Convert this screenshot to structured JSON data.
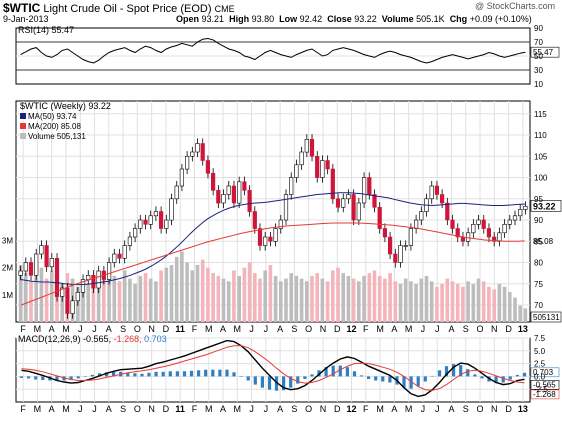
{
  "header": {
    "symbol": "$WTIC",
    "name": "Light Crude Oil - Spot Price (EOD)",
    "exchange": "CME",
    "date": "9-Jan-2013",
    "open_label": "Open",
    "open": "93.21",
    "high_label": "High",
    "high": "93.80",
    "low_label": "Low",
    "low": "92.42",
    "close_label": "Close",
    "close": "93.22",
    "volume_label": "Volume",
    "volume": "505.1K",
    "chg_label": "Chg",
    "chg": "+0.09 (+0.10%)",
    "watermark": "@ StockCharts.com"
  },
  "chart_data": [
    {
      "type": "line",
      "panel": "rsi",
      "title": "RSI(14) 55.47",
      "ylim": [
        10,
        90
      ],
      "ticks": [
        "90",
        "70",
        "50",
        "30",
        "10"
      ],
      "reference_lines": [
        70,
        30
      ],
      "last_value_label": "55.47",
      "series": [
        {
          "values": [
            52,
            56,
            60,
            62,
            55,
            50,
            48,
            52,
            58,
            60,
            55,
            50,
            45,
            42,
            40,
            44,
            50,
            55,
            58,
            60,
            62,
            58,
            55,
            60,
            64,
            62,
            58,
            55,
            60,
            63,
            65,
            68,
            66,
            64,
            70,
            74,
            75,
            73,
            68,
            64,
            60,
            58,
            55,
            50,
            48,
            45,
            50,
            55,
            58,
            55,
            52,
            50,
            48,
            52,
            55,
            58,
            60,
            55,
            50,
            52,
            58,
            60,
            62,
            60,
            58,
            55,
            52,
            50,
            48,
            52,
            55,
            57,
            55,
            52,
            50,
            48,
            45,
            42,
            40,
            42,
            45,
            48,
            50,
            52,
            50,
            48,
            46,
            48,
            50,
            52,
            55,
            53,
            50,
            48,
            50,
            52,
            54,
            55.47
          ]
        }
      ],
      "color": "#000000"
    },
    {
      "type": "candlestick",
      "panel": "price",
      "title": "$WTIC (Weekly) 93.22",
      "ylim": [
        66,
        118
      ],
      "ticks": [
        "115",
        "110",
        "105",
        "100",
        "95",
        "90",
        "85",
        "80",
        "75",
        "70"
      ],
      "last_price_label": "93.22",
      "series": [
        {
          "name": "$WTIC (Weekly) 93.22",
          "values": [
            78,
            80,
            77,
            82,
            84,
            79,
            81,
            72,
            74,
            68,
            71,
            73,
            76,
            77,
            74,
            78,
            76,
            80,
            82,
            81,
            84,
            86,
            88,
            90,
            89,
            91,
            92,
            88,
            90,
            95,
            98,
            102,
            105,
            106,
            108,
            104,
            101,
            97,
            94,
            96,
            98,
            94,
            99,
            97,
            92,
            88,
            84,
            86,
            85,
            88,
            90,
            96,
            100,
            103,
            106,
            109,
            105,
            100,
            104,
            102,
            95,
            93,
            95,
            96,
            90,
            94,
            100,
            96,
            93,
            88,
            86,
            82,
            80,
            84,
            84,
            88,
            90,
            92,
            95,
            98,
            96,
            94,
            90,
            88,
            86,
            85,
            87,
            89,
            90,
            88,
            86,
            85,
            87,
            89,
            90,
            91,
            92.5,
            93.22
          ],
          "color": "#000000"
        },
        {
          "name": "MA(50) 93.74",
          "values": [
            76,
            75.8,
            75.6,
            75.5,
            75.4,
            75.4,
            75.3,
            75.2,
            75,
            74.9,
            74.8,
            74.8,
            74.9,
            75,
            75.2,
            75.4,
            75.6,
            75.9,
            76.2,
            76.6,
            77,
            77.5,
            78,
            78.6,
            79.3,
            80.1,
            81,
            82,
            83.1,
            84.3,
            85.6,
            86.9,
            88.1,
            89.2,
            90.2,
            91,
            91.7,
            92.3,
            92.8,
            93.2,
            93.5,
            93.7,
            93.9,
            94,
            94.1,
            94.2,
            94.4,
            94.6,
            94.8,
            95,
            95.2,
            95.4,
            95.6,
            95.8,
            96,
            96.1,
            96.2,
            96.3,
            96.4,
            96.4,
            96.4,
            96.3,
            96.2,
            96,
            95.8,
            95.6,
            95.4,
            95.2,
            94.9,
            94.6,
            94.3,
            94,
            93.8,
            93.6,
            93.5,
            93.4,
            93.5,
            93.6,
            93.7,
            93.8,
            93.9,
            93.9,
            93.8,
            93.7,
            93.6,
            93.5,
            93.4,
            93.4,
            93.4,
            93.5,
            93.6,
            93.7,
            93.74
          ],
          "color": "#1a237e"
        },
        {
          "name": "MA(200) 85.08",
          "values": [
            70,
            70.6,
            71.2,
            71.8,
            72.4,
            73,
            73.6,
            74.2,
            74.8,
            75.3,
            75.8,
            76.3,
            76.8,
            77.3,
            77.8,
            78.3,
            78.8,
            79.3,
            79.8,
            80.3,
            80.8,
            81.3,
            81.8,
            82.3,
            82.8,
            83.3,
            83.8,
            84.3,
            84.8,
            85.2,
            85.6,
            86,
            86.4,
            86.8,
            87.1,
            87.4,
            87.7,
            88,
            88.2,
            88.4,
            88.6,
            88.7,
            88.8,
            88.9,
            89,
            89.1,
            89.2,
            89.3,
            89.3,
            89.3,
            89.3,
            89.3,
            89.2,
            89.1,
            89,
            88.9,
            88.8,
            88.6,
            88.4,
            88.2,
            88,
            87.7,
            87.4,
            87.1,
            86.8,
            86.5,
            86.2,
            85.9,
            85.7,
            85.5,
            85.3,
            85.2,
            85.1,
            85,
            85,
            85,
            85.08
          ],
          "color": "#e53935"
        }
      ],
      "last_ma200_label": "85.08"
    },
    {
      "type": "bar",
      "panel": "volume",
      "title": "Volume 505,131",
      "ylim": [
        0,
        3.5
      ],
      "ticks": [
        "3M",
        "2M",
        "1M"
      ],
      "last_value_label": "505131",
      "series": [
        {
          "name": "Volume 505,131",
          "values": [
            2.1,
            1.8,
            1.5,
            1.7,
            2.0,
            1.6,
            1.9,
            2.2,
            1.4,
            1.8,
            1.6,
            1.3,
            1.5,
            1.4,
            1.7,
            1.5,
            1.6,
            1.8,
            1.7,
            1.5,
            1.9,
            1.6,
            1.4,
            1.7,
            1.8,
            1.6,
            1.5,
            1.9,
            2.0,
            2.1,
            2.4,
            2.6,
            2.2,
            1.9,
            2.1,
            2.3,
            2.0,
            1.8,
            1.7,
            1.6,
            1.5,
            1.9,
            1.7,
            2.0,
            2.2,
            1.8,
            1.6,
            1.9,
            2.1,
            1.7,
            1.5,
            1.6,
            1.8,
            1.7,
            1.6,
            1.5,
            1.7,
            1.8,
            1.6,
            1.5,
            1.9,
            2.0,
            1.8,
            1.7,
            1.6,
            1.5,
            1.7,
            1.8,
            1.9,
            1.7,
            1.6,
            1.8,
            1.5,
            1.4,
            1.6,
            1.5,
            1.4,
            1.6,
            1.7,
            1.5,
            1.3,
            1.4,
            1.6,
            1.5,
            1.4,
            1.3,
            1.5,
            1.4,
            1.6,
            1.5,
            1.3,
            1.2,
            1.4,
            1.3,
            1.1,
            0.9,
            0.6,
            0.5
          ]
        }
      ]
    },
    {
      "type": "line",
      "panel": "macd",
      "title": "MACD(12,26,9) -0.565, -1.268, 0.703",
      "ylim": [
        -5,
        7.5
      ],
      "ticks": [
        "7.5",
        "5.0",
        "2.5",
        "0.0",
        "-2.5"
      ],
      "last_value_labels": [
        "0.703",
        "-0.565",
        "-1.268"
      ],
      "series": [
        {
          "name": "MACD",
          "values": [
            1.2,
            1.0,
            0.6,
            0.2,
            -0.3,
            -0.8,
            -1.1,
            -1.3,
            -1.2,
            -0.8,
            -0.4,
            0.1,
            0.6,
            1.0,
            1.3,
            1.4,
            1.5,
            1.6,
            2.0,
            2.5,
            2.8,
            3.2,
            3.6,
            4.0,
            4.5,
            5.0,
            5.5,
            6.0,
            6.5,
            7.0,
            6.8,
            6.0,
            4.8,
            3.2,
            1.6,
            0.2,
            -1.2,
            -2.2,
            -2.6,
            -2.4,
            -1.8,
            -0.8,
            0.4,
            1.6,
            2.6,
            3.4,
            3.8,
            3.5,
            2.8,
            2.0,
            1.4,
            0.8,
            0.2,
            -0.8,
            -2.2,
            -3.4,
            -3.9,
            -3.6,
            -2.6,
            -1.2,
            0.4,
            1.8,
            2.6,
            2.4,
            1.6,
            0.6,
            -0.4,
            -1.2,
            -1.6,
            -1.4,
            -0.8,
            -0.565
          ],
          "color": "#000000"
        },
        {
          "name": "Signal",
          "values": [
            1.5,
            1.4,
            1.2,
            0.9,
            0.5,
            0.1,
            -0.3,
            -0.6,
            -0.8,
            -0.8,
            -0.7,
            -0.5,
            -0.2,
            0.1,
            0.4,
            0.7,
            0.9,
            1.1,
            1.3,
            1.6,
            1.9,
            2.2,
            2.6,
            3.0,
            3.4,
            3.8,
            4.2,
            4.7,
            5.2,
            5.7,
            6.0,
            6.0,
            5.6,
            4.8,
            3.8,
            2.8,
            1.6,
            0.5,
            -0.4,
            -1.0,
            -1.3,
            -1.2,
            -0.8,
            -0.2,
            0.5,
            1.3,
            2.0,
            2.5,
            2.6,
            2.5,
            2.2,
            1.8,
            1.4,
            0.8,
            0.0,
            -1.0,
            -2.0,
            -2.6,
            -2.7,
            -2.4,
            -1.6,
            -0.6,
            0.4,
            1.0,
            1.2,
            1.0,
            0.6,
            0.1,
            -0.4,
            -0.8,
            -1.1,
            -1.268
          ],
          "color": "#e53935"
        }
      ],
      "histogram_color": "#2f7fc1"
    }
  ],
  "legend": {
    "price_title": "$WTIC (Weekly) 93.22",
    "ma50": "MA(50) 93.74",
    "ma200": "MA(200) 85.08",
    "volume": "Volume 505,131",
    "rsi_title": "RSI(14) 55.47",
    "macd_title": "MACD(12,26,9)",
    "macd_v1": "-0.565,",
    "macd_v2": "-1.268,",
    "macd_v3": "0.703"
  },
  "x_axis": {
    "months": [
      "F",
      "M",
      "A",
      "M",
      "J",
      "J",
      "A",
      "S",
      "O",
      "N",
      "D",
      "11",
      "F",
      "M",
      "A",
      "M",
      "J",
      "J",
      "A",
      "S",
      "O",
      "N",
      "D",
      "12",
      "F",
      "M",
      "A",
      "M",
      "J",
      "J",
      "A",
      "S",
      "O",
      "N",
      "D",
      "13"
    ],
    "bold_labels": [
      "11",
      "12",
      "13"
    ]
  },
  "colors": {
    "up_candle": "#ffffff",
    "down_candle": "#d0153b",
    "volume_up": "#f4b4bc",
    "volume_down": "#bdbdbd",
    "ma50": "#1a237e",
    "ma200": "#e53935",
    "macd_hist": "#2f7fc1",
    "grid": "#e0e0e0",
    "axis": "#000000"
  }
}
